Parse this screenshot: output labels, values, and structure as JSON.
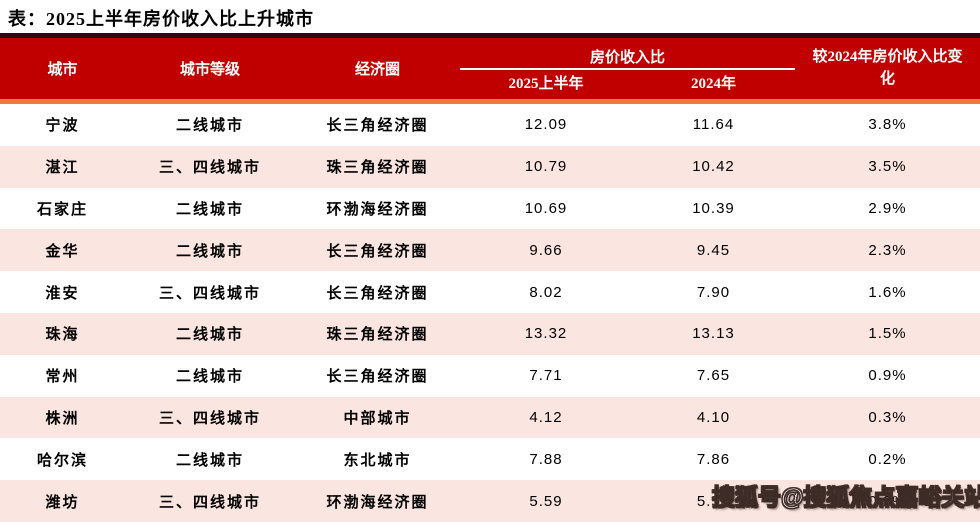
{
  "title": "表：2025上半年房价收入比上升城市",
  "table": {
    "columns": {
      "city": "城市",
      "tier": "城市等级",
      "region": "经济圈",
      "ratio_group": "房价收入比",
      "h1_2025": "2025上半年",
      "y2024": "2024年",
      "change": "较2024年房价收入比变化"
    },
    "rows": [
      {
        "city": "宁波",
        "tier": "二线城市",
        "region": "长三角经济圈",
        "h1_2025": "12.09",
        "y2024": "11.64",
        "change": "3.8%"
      },
      {
        "city": "湛江",
        "tier": "三、四线城市",
        "region": "珠三角经济圈",
        "h1_2025": "10.79",
        "y2024": "10.42",
        "change": "3.5%"
      },
      {
        "city": "石家庄",
        "tier": "二线城市",
        "region": "环渤海经济圈",
        "h1_2025": "10.69",
        "y2024": "10.39",
        "change": "2.9%"
      },
      {
        "city": "金华",
        "tier": "二线城市",
        "region": "长三角经济圈",
        "h1_2025": "9.66",
        "y2024": "9.45",
        "change": "2.3%"
      },
      {
        "city": "淮安",
        "tier": "三、四线城市",
        "region": "长三角经济圈",
        "h1_2025": "8.02",
        "y2024": "7.90",
        "change": "1.6%"
      },
      {
        "city": "珠海",
        "tier": "二线城市",
        "region": "珠三角经济圈",
        "h1_2025": "13.32",
        "y2024": "13.13",
        "change": "1.5%"
      },
      {
        "city": "常州",
        "tier": "二线城市",
        "region": "长三角经济圈",
        "h1_2025": "7.71",
        "y2024": "7.65",
        "change": "0.9%"
      },
      {
        "city": "株洲",
        "tier": "三、四线城市",
        "region": "中部城市",
        "h1_2025": "4.12",
        "y2024": "4.10",
        "change": "0.3%"
      },
      {
        "city": "哈尔滨",
        "tier": "二线城市",
        "region": "东北城市",
        "h1_2025": "7.88",
        "y2024": "7.86",
        "change": "0.2%"
      },
      {
        "city": "潍坊",
        "tier": "三、四线城市",
        "region": "环渤海经济圈",
        "h1_2025": "5.59",
        "y2024": "5.58",
        "change": "0.2%"
      }
    ]
  },
  "watermark": "搜狐号@搜狐焦点嘉峪关站",
  "colors": {
    "header_red": "#C00000",
    "dark_strip": "#2B0B0B",
    "accent_orange": "#ED7D31",
    "row_pink": "#FBE5E0",
    "row_white": "#FFFFFF",
    "header_text": "#FFFFFF",
    "body_text": "#000000"
  }
}
